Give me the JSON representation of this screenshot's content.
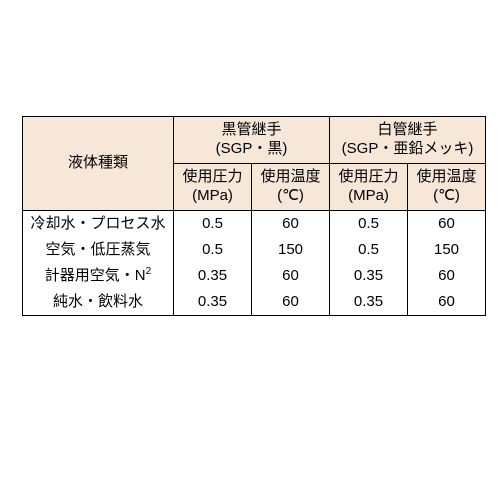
{
  "table": {
    "background_color": "#ffffff",
    "header_fill": "#f6e7d8",
    "border_color": "#000000",
    "font_size_pt": 15,
    "row_header_label": "液体種類",
    "groups": [
      {
        "title_line1": "黒管継手",
        "title_line2": "(SGP・黒)"
      },
      {
        "title_line1": "白管継手",
        "title_line2": "(SGP・亜鉛メッキ)"
      }
    ],
    "sub_headers": {
      "pressure_line1": "使用圧力",
      "pressure_line2": "(MPa)",
      "temp_line1": "使用温度",
      "temp_line2": "(℃)"
    },
    "rows": [
      {
        "label": "冷却水・プロセス水",
        "p1": "0.5",
        "t1": "60",
        "p2": "0.5",
        "t2": "60"
      },
      {
        "label": "空気・低圧蒸気",
        "p1": "0.5",
        "t1": "150",
        "p2": "0.5",
        "t2": "150"
      },
      {
        "label_prefix": "計器用空気・N",
        "label_sup": "2",
        "p1": "0.35",
        "t1": "60",
        "p2": "0.35",
        "t2": "60"
      },
      {
        "label": "純水・飲料水",
        "p1": "0.35",
        "t1": "60",
        "p2": "0.35",
        "t2": "60"
      }
    ]
  }
}
